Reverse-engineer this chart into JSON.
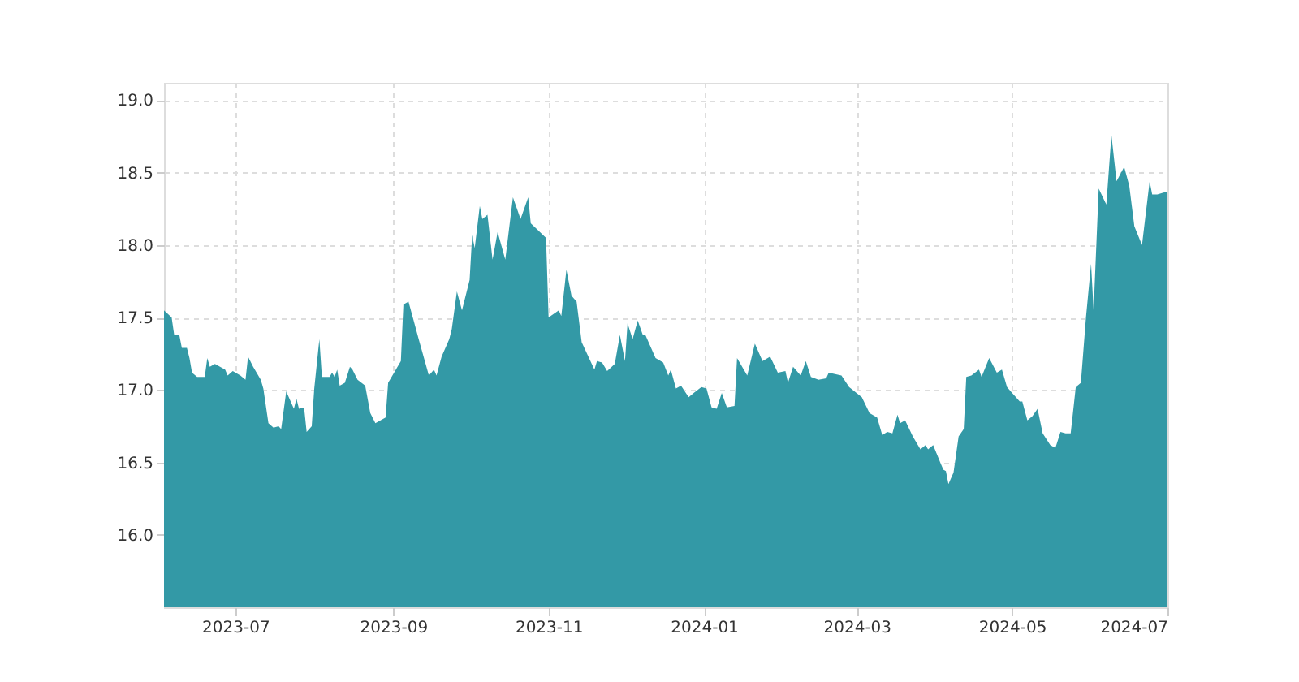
{
  "chart_data": {
    "type": "area",
    "x": [
      "2023-06-03",
      "2023-06-06",
      "2023-06-07",
      "2023-06-09",
      "2023-06-10",
      "2023-06-12",
      "2023-06-13",
      "2023-06-14",
      "2023-06-16",
      "2023-06-19",
      "2023-06-20",
      "2023-06-21",
      "2023-06-23",
      "2023-06-27",
      "2023-06-28",
      "2023-06-30",
      "2023-07-03",
      "2023-07-05",
      "2023-07-06",
      "2023-07-08",
      "2023-07-11",
      "2023-07-12",
      "2023-07-14",
      "2023-07-16",
      "2023-07-18",
      "2023-07-19",
      "2023-07-21",
      "2023-07-22",
      "2023-07-24",
      "2023-07-25",
      "2023-07-26",
      "2023-07-28",
      "2023-07-29",
      "2023-07-31",
      "2023-08-01",
      "2023-08-03",
      "2023-08-04",
      "2023-08-07",
      "2023-08-08",
      "2023-08-09",
      "2023-08-10",
      "2023-08-11",
      "2023-08-13",
      "2023-08-15",
      "2023-08-16",
      "2023-08-18",
      "2023-08-21",
      "2023-08-23",
      "2023-08-25",
      "2023-08-29",
      "2023-08-30",
      "2023-09-04",
      "2023-09-05",
      "2023-09-07",
      "2023-09-11",
      "2023-09-15",
      "2023-09-17",
      "2023-09-18",
      "2023-09-20",
      "2023-09-23",
      "2023-09-24",
      "2023-09-26",
      "2023-09-28",
      "2023-10-01",
      "2023-10-02",
      "2023-10-03",
      "2023-10-05",
      "2023-10-06",
      "2023-10-08",
      "2023-10-10",
      "2023-10-12",
      "2023-10-15",
      "2023-10-18",
      "2023-10-21",
      "2023-10-24",
      "2023-10-25",
      "2023-10-31",
      "2023-11-01",
      "2023-11-05",
      "2023-11-06",
      "2023-11-08",
      "2023-11-10",
      "2023-11-12",
      "2023-11-14",
      "2023-11-19",
      "2023-11-20",
      "2023-11-22",
      "2023-11-24",
      "2023-11-27",
      "2023-11-29",
      "2023-12-01",
      "2023-12-02",
      "2023-12-04",
      "2023-12-06",
      "2023-12-08",
      "2023-12-09",
      "2023-12-13",
      "2023-12-16",
      "2023-12-18",
      "2023-12-19",
      "2023-12-21",
      "2023-12-23",
      "2023-12-26",
      "2023-12-28",
      "2023-12-31",
      "2024-01-02",
      "2024-01-04",
      "2024-01-06",
      "2024-01-08",
      "2024-01-10",
      "2024-01-13",
      "2024-01-14",
      "2024-01-18",
      "2024-01-21",
      "2024-01-24",
      "2024-01-27",
      "2024-01-30",
      "2024-02-02",
      "2024-02-03",
      "2024-02-05",
      "2024-02-08",
      "2024-02-10",
      "2024-02-12",
      "2024-02-15",
      "2024-02-18",
      "2024-02-19",
      "2024-02-24",
      "2024-02-27",
      "2024-03-03",
      "2024-03-06",
      "2024-03-09",
      "2024-03-11",
      "2024-03-13",
      "2024-03-15",
      "2024-03-17",
      "2024-03-18",
      "2024-03-20",
      "2024-03-23",
      "2024-03-26",
      "2024-03-28",
      "2024-03-29",
      "2024-03-31",
      "2024-04-03",
      "2024-04-04",
      "2024-04-05",
      "2024-04-06",
      "2024-04-08",
      "2024-04-10",
      "2024-04-12",
      "2024-04-13",
      "2024-04-15",
      "2024-04-18",
      "2024-04-19",
      "2024-04-22",
      "2024-04-25",
      "2024-04-27",
      "2024-04-29",
      "2024-05-01",
      "2024-05-04",
      "2024-05-05",
      "2024-05-07",
      "2024-05-09",
      "2024-05-11",
      "2024-05-13",
      "2024-05-16",
      "2024-05-18",
      "2024-05-20",
      "2024-05-22",
      "2024-05-24",
      "2024-05-26",
      "2024-05-28",
      "2024-05-30",
      "2024-06-01",
      "2024-06-02",
      "2024-06-04",
      "2024-06-07",
      "2024-06-09",
      "2024-06-11",
      "2024-06-14",
      "2024-06-16",
      "2024-06-18",
      "2024-06-21",
      "2024-06-24",
      "2024-06-25",
      "2024-06-27",
      "2024-07-01"
    ],
    "series": [
      {
        "color": "#3399a6",
        "values": [
          17.55,
          17.5,
          17.38,
          17.38,
          17.29,
          17.29,
          17.22,
          17.12,
          17.09,
          17.09,
          17.22,
          17.16,
          17.18,
          17.14,
          17.1,
          17.13,
          17.1,
          17.07,
          17.23,
          17.16,
          17.07,
          17.01,
          16.77,
          16.74,
          16.75,
          16.73,
          16.99,
          16.95,
          16.87,
          16.94,
          16.87,
          16.88,
          16.71,
          16.75,
          17.01,
          17.35,
          17.09,
          17.09,
          17.12,
          17.09,
          17.14,
          17.03,
          17.05,
          17.16,
          17.14,
          17.07,
          17.03,
          16.84,
          16.77,
          16.81,
          17.05,
          17.2,
          17.59,
          17.61,
          17.35,
          17.1,
          17.14,
          17.1,
          17.23,
          17.35,
          17.42,
          17.68,
          17.55,
          17.76,
          18.07,
          17.98,
          18.27,
          18.18,
          18.21,
          17.9,
          18.09,
          17.9,
          18.33,
          18.18,
          18.33,
          18.15,
          18.05,
          17.5,
          17.55,
          17.51,
          17.83,
          17.65,
          17.61,
          17.33,
          17.14,
          17.2,
          17.19,
          17.13,
          17.18,
          17.38,
          17.2,
          17.46,
          17.35,
          17.48,
          17.38,
          17.38,
          17.22,
          17.19,
          17.1,
          17.14,
          17.01,
          17.03,
          16.95,
          16.98,
          17.02,
          17.01,
          16.88,
          16.87,
          16.98,
          16.88,
          16.89,
          17.22,
          17.1,
          17.32,
          17.2,
          17.23,
          17.12,
          17.13,
          17.05,
          17.16,
          17.1,
          17.2,
          17.09,
          17.07,
          17.08,
          17.12,
          17.1,
          17.02,
          16.95,
          16.84,
          16.81,
          16.69,
          16.71,
          16.7,
          16.83,
          16.77,
          16.79,
          16.68,
          16.59,
          16.62,
          16.59,
          16.62,
          16.49,
          16.45,
          16.44,
          16.35,
          16.43,
          16.68,
          16.73,
          17.09,
          17.1,
          17.14,
          17.09,
          17.22,
          17.12,
          17.14,
          17.02,
          16.98,
          16.92,
          16.92,
          16.79,
          16.82,
          16.87,
          16.7,
          16.62,
          16.6,
          16.71,
          16.7,
          16.7,
          17.02,
          17.05,
          17.5,
          17.87,
          17.55,
          18.39,
          18.28,
          18.76,
          18.44,
          18.54,
          18.41,
          18.13,
          18.0,
          18.44,
          18.35,
          18.35,
          18.37
        ]
      }
    ],
    "xlim": [
      "2023-06-03",
      "2024-07-01"
    ],
    "xticks": [
      "2023-07",
      "2023-09",
      "2023-11",
      "2024-01",
      "2024-03",
      "2024-05",
      "2024-07"
    ],
    "ylim": [
      15.5,
      19.12
    ],
    "yticks": [
      {
        "value": 16,
        "label": "16.0"
      },
      {
        "value": 16.5,
        "label": "16.5"
      },
      {
        "value": 17,
        "label": "17.0"
      },
      {
        "value": 17.5,
        "label": "17.5"
      },
      {
        "value": 18,
        "label": "18.0"
      },
      {
        "value": 18.5,
        "label": "18.5"
      },
      {
        "value": 19,
        "label": "19.0"
      }
    ],
    "grid": true
  }
}
